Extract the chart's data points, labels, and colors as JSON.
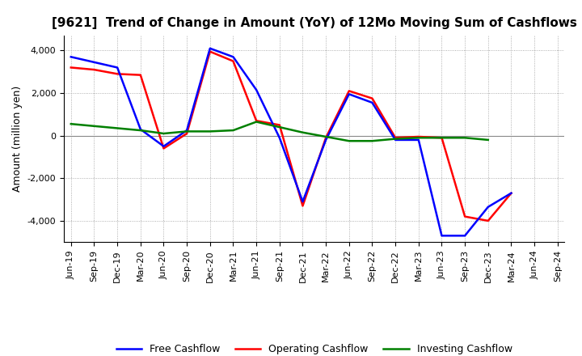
{
  "title": "[9621]  Trend of Change in Amount (YoY) of 12Mo Moving Sum of Cashflows",
  "ylabel": "Amount (million yen)",
  "x_labels": [
    "Jun-19",
    "Sep-19",
    "Dec-19",
    "Mar-20",
    "Jun-20",
    "Sep-20",
    "Dec-20",
    "Mar-21",
    "Jun-21",
    "Sep-21",
    "Dec-21",
    "Mar-22",
    "Jun-22",
    "Sep-22",
    "Dec-22",
    "Mar-23",
    "Jun-23",
    "Sep-23",
    "Dec-23",
    "Mar-24",
    "Jun-24",
    "Sep-24"
  ],
  "operating": [
    3200,
    3100,
    2900,
    2850,
    -600,
    100,
    3950,
    3500,
    700,
    500,
    -3300,
    -100,
    2100,
    1750,
    -100,
    -50,
    -100,
    -3800,
    -4000,
    -2700,
    null,
    null
  ],
  "investing": [
    550,
    450,
    350,
    250,
    100,
    200,
    200,
    250,
    650,
    400,
    150,
    -50,
    -250,
    -250,
    -150,
    -100,
    -100,
    -100,
    -200,
    null,
    null,
    null
  ],
  "free": [
    3700,
    3450,
    3200,
    300,
    -500,
    250,
    4100,
    3700,
    2150,
    -100,
    -3100,
    -200,
    1950,
    1550,
    -200,
    -200,
    -4700,
    -4700,
    -3350,
    -2700,
    null,
    null
  ],
  "operating_color": "#ff0000",
  "investing_color": "#008000",
  "free_color": "#0000ff",
  "ylim": [
    -5000,
    4700
  ],
  "yticks": [
    -4000,
    -2000,
    0,
    2000,
    4000
  ],
  "bg_color": "#ffffff",
  "plot_bg_color": "#ffffff",
  "grid_color": "#999999",
  "linewidth": 1.8,
  "title_fontsize": 11,
  "label_fontsize": 8,
  "legend_fontsize": 9
}
